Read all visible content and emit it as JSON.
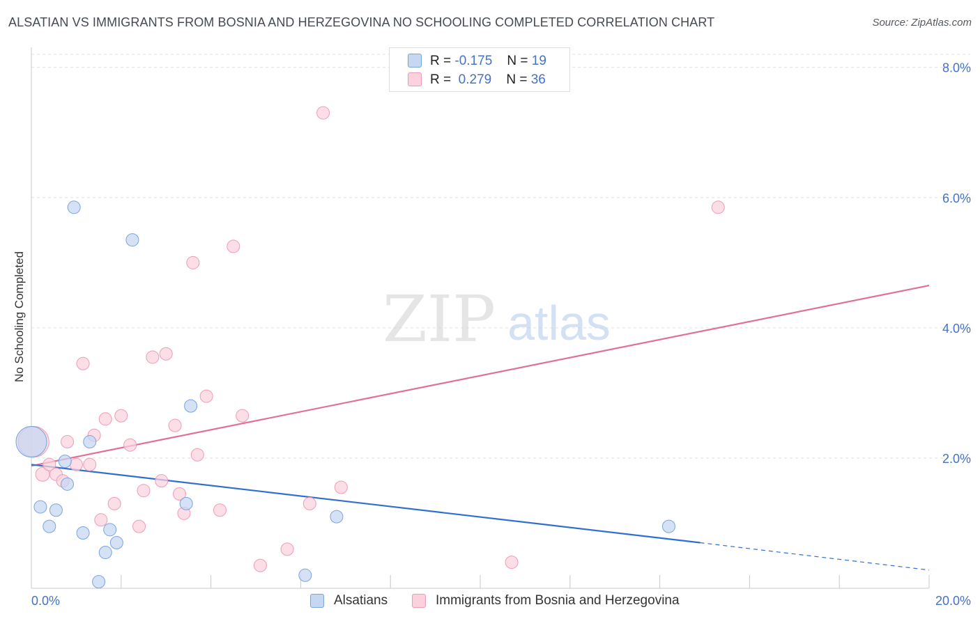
{
  "header": {
    "title": "ALSATIAN VS IMMIGRANTS FROM BOSNIA AND HERZEGOVINA NO SCHOOLING COMPLETED CORRELATION CHART",
    "source": "Source: ZipAtlas.com"
  },
  "watermark": {
    "part1": "ZIP",
    "part2": "atlas"
  },
  "legend": {
    "rows": [
      {
        "r_label": "R =",
        "r_value": "-0.175",
        "n_label": "N =",
        "n_value": "19"
      },
      {
        "r_label": "R =",
        "r_value": "0.279",
        "n_label": "N =",
        "n_value": "36"
      }
    ],
    "bottom": [
      "Alsatians",
      "Immigrants from Bosnia and Herzegovina"
    ]
  },
  "colors": {
    "blue_point": "#c5d7f3",
    "blue_stroke": "#7aa3dd",
    "blue_line": "#2f6fd1",
    "pink_point": "#fbd1dd",
    "pink_stroke": "#ee9bb5",
    "pink_line": "#e07098",
    "axis_text": "#4472c4",
    "grid": "#e0e0e0"
  },
  "chart_data": {
    "type": "scatter",
    "title": "ALSATIAN VS IMMIGRANTS FROM BOSNIA AND HERZEGOVINA NO SCHOOLING COMPLETED CORRELATION CHART",
    "xlabel": "",
    "ylabel": "No Schooling Completed",
    "xlim": [
      0,
      20
    ],
    "ylim": [
      0,
      8.2
    ],
    "x_tick_labels": [
      "0.0%",
      "20.0%"
    ],
    "y_ticks": [
      2,
      4,
      6,
      8
    ],
    "y_tick_labels": [
      "2.0%",
      "4.0%",
      "6.0%",
      "8.0%"
    ],
    "grid": true,
    "legend_position": "top-center",
    "series": [
      {
        "name": "Alsatians",
        "color": "#c5d7f3",
        "r": -0.175,
        "n": 19,
        "points": [
          [
            0.0,
            2.25
          ],
          [
            0.2,
            1.25
          ],
          [
            0.4,
            0.95
          ],
          [
            0.55,
            1.2
          ],
          [
            0.75,
            1.95
          ],
          [
            0.8,
            1.6
          ],
          [
            0.95,
            5.85
          ],
          [
            1.15,
            0.85
          ],
          [
            1.3,
            2.25
          ],
          [
            1.5,
            0.1
          ],
          [
            1.65,
            0.55
          ],
          [
            1.75,
            0.9
          ],
          [
            1.9,
            0.7
          ],
          [
            2.25,
            5.35
          ],
          [
            3.45,
            1.3
          ],
          [
            3.55,
            2.8
          ],
          [
            6.1,
            0.2
          ],
          [
            6.8,
            1.1
          ],
          [
            14.2,
            0.95
          ]
        ],
        "point_sizes": [
          22,
          9,
          9,
          9,
          9,
          9,
          9,
          9,
          9,
          9,
          9,
          9,
          9,
          9,
          9,
          9,
          9,
          9,
          9
        ],
        "trend": {
          "x0": 0.0,
          "y0": 1.9,
          "x1": 14.9,
          "y1": 0.7,
          "dash_x1": 20.0,
          "dash_y1": 0.28
        }
      },
      {
        "name": "Immigrants from Bosnia and Herzegovina",
        "color": "#fbd1dd",
        "r": 0.279,
        "n": 36,
        "points": [
          [
            0.05,
            2.25
          ],
          [
            0.25,
            1.75
          ],
          [
            0.4,
            1.9
          ],
          [
            0.55,
            1.75
          ],
          [
            0.7,
            1.65
          ],
          [
            0.8,
            2.25
          ],
          [
            1.0,
            1.9
          ],
          [
            1.15,
            3.45
          ],
          [
            1.3,
            1.9
          ],
          [
            1.4,
            2.35
          ],
          [
            1.55,
            1.05
          ],
          [
            1.65,
            2.6
          ],
          [
            1.85,
            1.3
          ],
          [
            2.0,
            2.65
          ],
          [
            2.2,
            2.2
          ],
          [
            2.4,
            0.95
          ],
          [
            2.5,
            1.5
          ],
          [
            2.7,
            3.55
          ],
          [
            2.9,
            1.65
          ],
          [
            3.0,
            3.6
          ],
          [
            3.2,
            2.5
          ],
          [
            3.3,
            1.45
          ],
          [
            3.4,
            1.15
          ],
          [
            3.6,
            5.0
          ],
          [
            3.7,
            2.05
          ],
          [
            3.9,
            2.95
          ],
          [
            4.2,
            1.2
          ],
          [
            4.5,
            5.25
          ],
          [
            4.7,
            2.65
          ],
          [
            5.1,
            0.35
          ],
          [
            5.7,
            0.6
          ],
          [
            6.2,
            1.3
          ],
          [
            6.5,
            7.3
          ],
          [
            6.9,
            1.55
          ],
          [
            10.7,
            0.4
          ],
          [
            15.3,
            5.85
          ]
        ],
        "point_sizes": [
          22,
          10,
          9,
          9,
          9,
          9,
          9,
          9,
          9,
          9,
          9,
          9,
          9,
          9,
          9,
          9,
          9,
          9,
          9,
          9,
          9,
          9,
          9,
          9,
          9,
          9,
          9,
          9,
          9,
          9,
          9,
          9,
          9,
          9,
          9,
          9
        ],
        "trend": {
          "x0": 0.0,
          "y0": 1.88,
          "x1": 20.0,
          "y1": 4.65
        }
      }
    ]
  }
}
